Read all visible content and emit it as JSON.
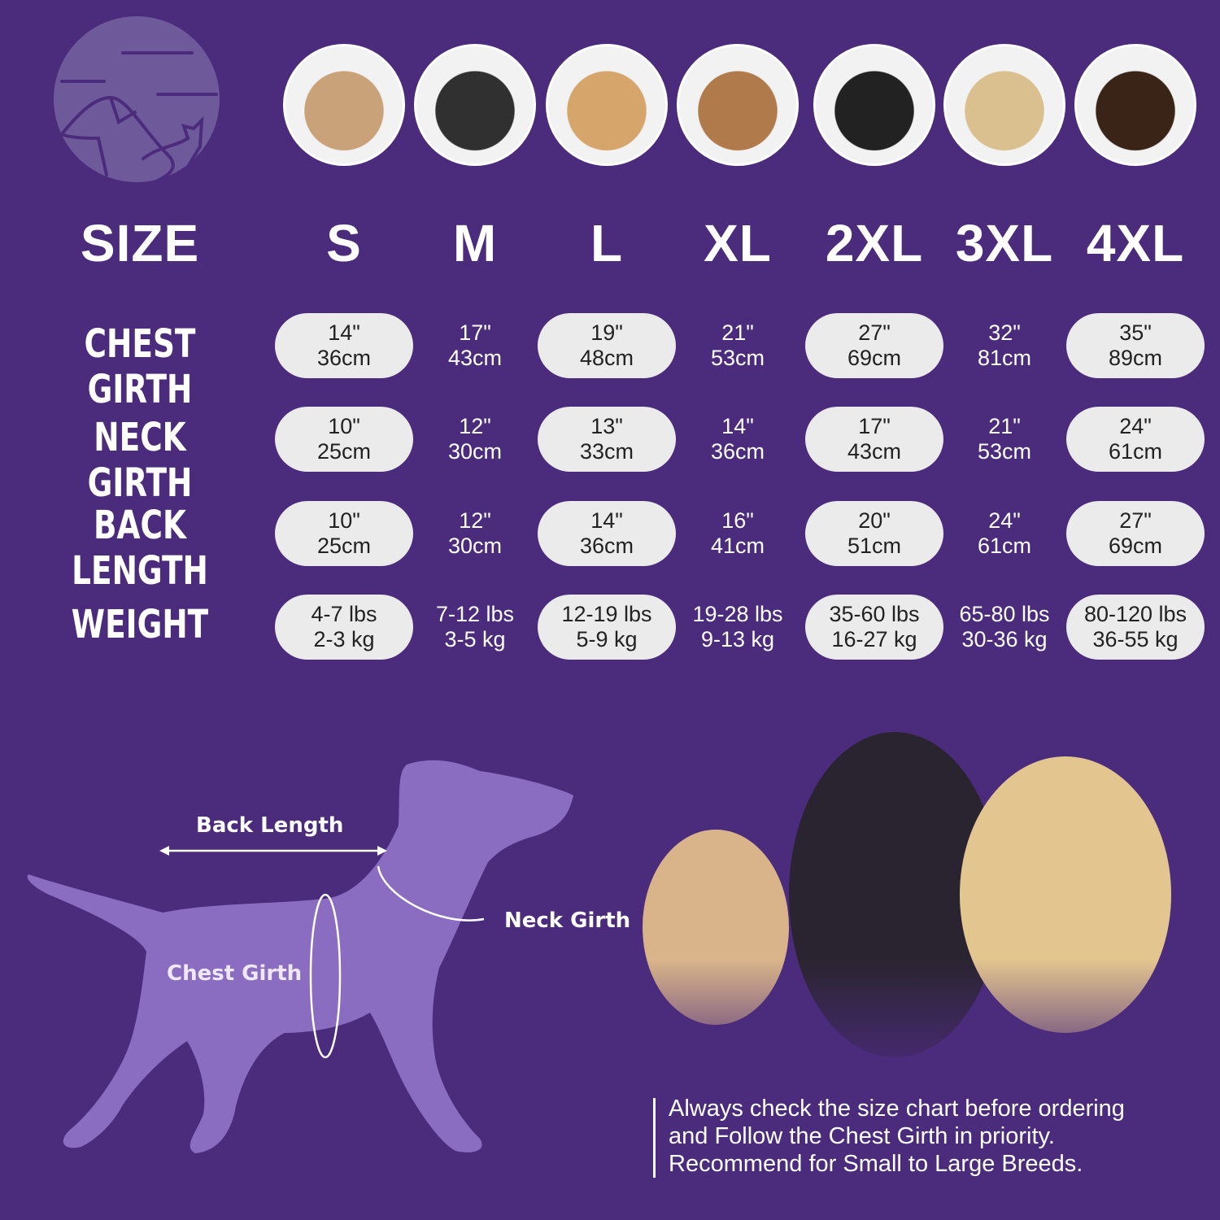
{
  "colors": {
    "background": "#4b2b7c",
    "pill": "#ebebeb",
    "silhouette": "#8a6cc0",
    "logo": "#6e5a9a"
  },
  "logo": {
    "icon": "dog-cat-logo-icon"
  },
  "breed_photos": [
    "shih-tzu",
    "boston-terrier",
    "cocker-spaniel",
    "beagle",
    "border-collie",
    "labrador",
    "doberman"
  ],
  "table": {
    "header_label": "SIZE",
    "sizes": [
      "S",
      "M",
      "L",
      "XL",
      "2XL",
      "3XL",
      "4XL"
    ],
    "rows": [
      {
        "label": "CHEST GIRTH",
        "values": [
          [
            "14\"",
            "36cm"
          ],
          [
            "17\"",
            "43cm"
          ],
          [
            "19\"",
            "48cm"
          ],
          [
            "21\"",
            "53cm"
          ],
          [
            "27\"",
            "69cm"
          ],
          [
            "32\"",
            "81cm"
          ],
          [
            "35\"",
            "89cm"
          ]
        ]
      },
      {
        "label": "NECK GIRTH",
        "values": [
          [
            "10\"",
            "25cm"
          ],
          [
            "12\"",
            "30cm"
          ],
          [
            "13\"",
            "33cm"
          ],
          [
            "14\"",
            "36cm"
          ],
          [
            "17\"",
            "43cm"
          ],
          [
            "21\"",
            "53cm"
          ],
          [
            "24\"",
            "61cm"
          ]
        ]
      },
      {
        "label": "BACK LENGTH",
        "values": [
          [
            "10\"",
            "25cm"
          ],
          [
            "12\"",
            "30cm"
          ],
          [
            "14\"",
            "36cm"
          ],
          [
            "16\"",
            "41cm"
          ],
          [
            "20\"",
            "51cm"
          ],
          [
            "24\"",
            "61cm"
          ],
          [
            "27\"",
            "69cm"
          ]
        ]
      },
      {
        "label": "WEIGHT",
        "values": [
          [
            "4-7 lbs",
            "2-3 kg"
          ],
          [
            "7-12 lbs",
            "3-5 kg"
          ],
          [
            "12-19 lbs",
            "5-9 kg"
          ],
          [
            "19-28 lbs",
            "9-13 kg"
          ],
          [
            "35-60 lbs",
            "16-27 kg"
          ],
          [
            "65-80 lbs",
            "30-36 kg"
          ],
          [
            "80-120 lbs",
            "36-55 kg"
          ]
        ]
      }
    ]
  },
  "diagram": {
    "back_length": "Back Length",
    "neck_girth": "Neck Girth",
    "chest_girth": "Chest Girth"
  },
  "note": [
    "Always check the size chart before ordering",
    "and Follow the Chest Girth in priority.",
    "Recommend for Small to Large Breeds."
  ]
}
